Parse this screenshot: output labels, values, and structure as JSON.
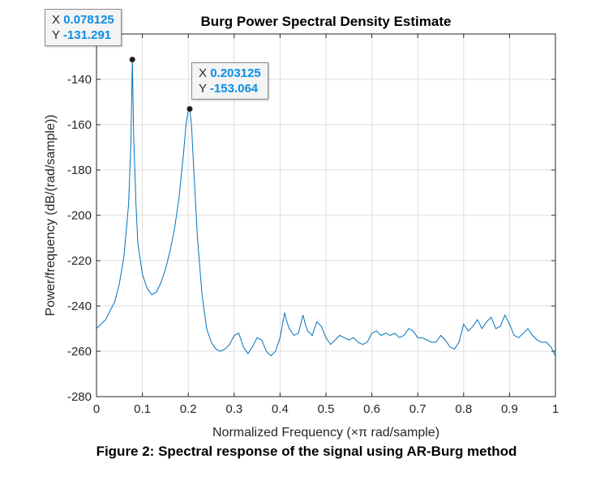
{
  "chart_data": {
    "type": "line",
    "title": "Burg Power Spectral Density Estimate",
    "xlabel": "Normalized Frequency  (×π rad/sample)",
    "ylabel": "Power/frequency (dB/(rad/sample))",
    "xlim": [
      0,
      1
    ],
    "ylim": [
      -280,
      -120
    ],
    "xticks": [
      "0",
      "0.1",
      "0.2",
      "0.3",
      "0.4",
      "0.5",
      "0.6",
      "0.7",
      "0.8",
      "0.9",
      "1"
    ],
    "yticks": [
      "-140",
      "-160",
      "-180",
      "-200",
      "-220",
      "-240",
      "-260",
      "-280"
    ],
    "grid": true,
    "series_color": "#0072BD",
    "x": [
      0,
      0.02,
      0.04,
      0.05,
      0.06,
      0.07,
      0.075,
      0.078125,
      0.081,
      0.086,
      0.09,
      0.1,
      0.11,
      0.12,
      0.13,
      0.14,
      0.15,
      0.16,
      0.17,
      0.18,
      0.19,
      0.195,
      0.2,
      0.203125,
      0.207,
      0.212,
      0.22,
      0.23,
      0.24,
      0.25,
      0.26,
      0.27,
      0.28,
      0.29,
      0.3,
      0.31,
      0.32,
      0.33,
      0.34,
      0.35,
      0.36,
      0.37,
      0.38,
      0.39,
      0.4,
      0.41,
      0.415,
      0.42,
      0.43,
      0.44,
      0.45,
      0.455,
      0.46,
      0.47,
      0.48,
      0.49,
      0.5,
      0.51,
      0.52,
      0.53,
      0.54,
      0.55,
      0.56,
      0.57,
      0.58,
      0.59,
      0.6,
      0.61,
      0.62,
      0.63,
      0.64,
      0.65,
      0.66,
      0.67,
      0.68,
      0.69,
      0.7,
      0.71,
      0.72,
      0.73,
      0.74,
      0.75,
      0.76,
      0.77,
      0.78,
      0.79,
      0.8,
      0.81,
      0.82,
      0.83,
      0.84,
      0.85,
      0.86,
      0.87,
      0.88,
      0.89,
      0.9,
      0.91,
      0.92,
      0.93,
      0.94,
      0.95,
      0.96,
      0.97,
      0.98,
      0.99,
      1.0
    ],
    "y": [
      -250,
      -246,
      -238,
      -230,
      -218,
      -195,
      -168,
      -131.291,
      -165,
      -195,
      -212,
      -226,
      -232,
      -235,
      -234,
      -230,
      -224,
      -216,
      -206,
      -192,
      -172,
      -160,
      -154,
      -153.064,
      -160,
      -180,
      -210,
      -235,
      -250,
      -256,
      -259,
      -260,
      -259,
      -257,
      -253,
      -252,
      -258,
      -261,
      -258,
      -254,
      -255,
      -260,
      -262,
      -260,
      -254,
      -243,
      -247,
      -250,
      -253,
      -252,
      -244,
      -248,
      -251,
      -253,
      -247,
      -249,
      -254,
      -257,
      -255,
      -253,
      -254,
      -255,
      -254,
      -256,
      -257,
      -256,
      -252,
      -251,
      -253,
      -252,
      -253,
      -252,
      -254,
      -253,
      -250,
      -251,
      -254,
      -254,
      -255,
      -256,
      -256,
      -253,
      -255,
      -258,
      -259,
      -256,
      -248,
      -251,
      -249,
      -246,
      -250,
      -247,
      -245,
      -250,
      -249,
      -244,
      -248,
      -253,
      -254,
      -252,
      -250,
      -253,
      -255,
      -256,
      -256,
      -258,
      -262
    ],
    "datatips": [
      {
        "x_label": "X",
        "x_value": "0.078125",
        "y_label": "Y",
        "y_value": "-131.291"
      },
      {
        "x_label": "X",
        "x_value": "0.203125",
        "y_label": "Y",
        "y_value": "-153.064"
      }
    ]
  },
  "caption": "Figure 2: Spectral response of the signal using AR-Burg method"
}
